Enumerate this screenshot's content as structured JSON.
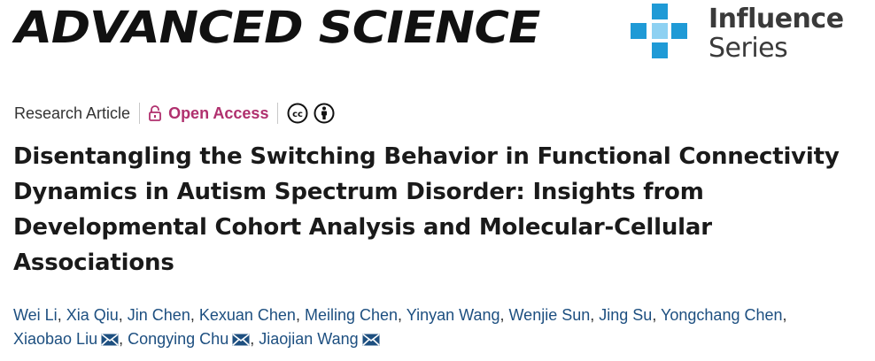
{
  "masthead": {
    "journal_name": "ADVANCED SCIENCE",
    "series_line1": "Influence",
    "series_line2": "Series",
    "series_color": "#1f9ad6"
  },
  "meta": {
    "article_type": "Research Article",
    "open_access_label": "Open Access",
    "open_access_color": "#b0306e",
    "license_icons": [
      "cc-icon",
      "attribution-icon"
    ]
  },
  "article": {
    "title": "Disentangling the Switching Behavior in Functional Connectivity Dynamics in Autism Spectrum Disorder: Insights from Developmental Cohort Analysis and Molecular-Cellular Associations"
  },
  "authors": [
    {
      "name": "Wei Li",
      "corresponding": false
    },
    {
      "name": "Xia Qiu",
      "corresponding": false
    },
    {
      "name": "Jin Chen",
      "corresponding": false
    },
    {
      "name": "Kexuan Chen",
      "corresponding": false
    },
    {
      "name": "Meiling Chen",
      "corresponding": false
    },
    {
      "name": "Yinyan Wang",
      "corresponding": false
    },
    {
      "name": "Wenjie Sun",
      "corresponding": false
    },
    {
      "name": "Jing Su",
      "corresponding": false
    },
    {
      "name": "Yongchang Chen",
      "corresponding": false
    },
    {
      "name": "Xiaobao Liu",
      "corresponding": true
    },
    {
      "name": "Congying Chu",
      "corresponding": true
    },
    {
      "name": "Jiaojian Wang",
      "corresponding": true
    }
  ],
  "colors": {
    "author_link": "#1d4f80"
  }
}
